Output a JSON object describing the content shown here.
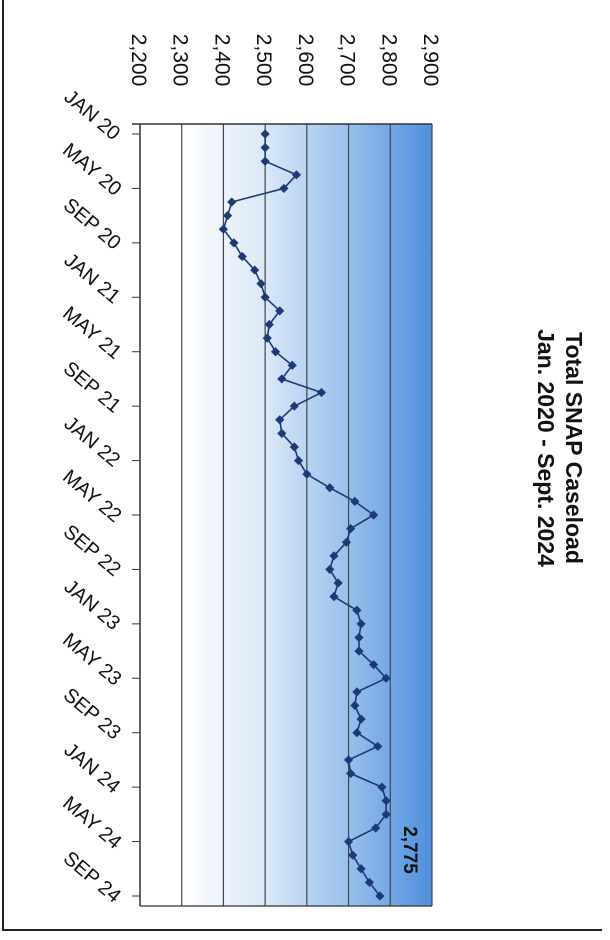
{
  "chart_data": {
    "type": "line",
    "title": "Total SNAP Caseload",
    "subtitle": "Jan. 2020 - Sept. 2024",
    "ylim": [
      2200,
      2900
    ],
    "y_ticks": [
      "2,200",
      "2,300",
      "2,400",
      "2,500",
      "2,600",
      "2,700",
      "2,800",
      "2,900"
    ],
    "x_tick_labels": [
      "JAN 20",
      "MAY 20",
      "SEP 20",
      "JAN 21",
      "MAY 21",
      "SEP 21",
      "JAN 22",
      "MAY 22",
      "SEP 22",
      "JAN 23",
      "MAY 23",
      "SEP 23",
      "JAN 24",
      "MAY 24",
      "SEP 24"
    ],
    "grid": true,
    "background": "blue gradient",
    "last_value_label": "2,775",
    "series": [
      {
        "color": "#1c3a78",
        "x": [
          "2020-01",
          "2020-02",
          "2020-03",
          "2020-04",
          "2020-05",
          "2020-06",
          "2020-07",
          "2020-08",
          "2020-09",
          "2020-10",
          "2020-11",
          "2020-12",
          "2021-01",
          "2021-02",
          "2021-03",
          "2021-04",
          "2021-05",
          "2021-06",
          "2021-07",
          "2021-08",
          "2021-09",
          "2021-10",
          "2021-11",
          "2021-12",
          "2022-01",
          "2022-02",
          "2022-03",
          "2022-04",
          "2022-05",
          "2022-06",
          "2022-07",
          "2022-08",
          "2022-09",
          "2022-10",
          "2022-11",
          "2022-12",
          "2023-01",
          "2023-02",
          "2023-03",
          "2023-04",
          "2023-05",
          "2023-06",
          "2023-07",
          "2023-08",
          "2023-09",
          "2023-10",
          "2023-11",
          "2023-12",
          "2024-01",
          "2024-02",
          "2024-03",
          "2024-04",
          "2024-05",
          "2024-06",
          "2024-07",
          "2024-08",
          "2024-09"
        ],
        "values": [
          2500,
          2500,
          2500,
          2575,
          2545,
          2420,
          2410,
          2400,
          2425,
          2445,
          2475,
          2490,
          2500,
          2535,
          2510,
          2505,
          2525,
          2565,
          2540,
          2635,
          2570,
          2535,
          2540,
          2570,
          2580,
          2600,
          2655,
          2715,
          2760,
          2705,
          2695,
          2665,
          2655,
          2675,
          2665,
          2720,
          2730,
          2725,
          2725,
          2760,
          2790,
          2720,
          2715,
          2730,
          2720,
          2770,
          2700,
          2705,
          2780,
          2790,
          2790,
          2765,
          2700,
          2710,
          2730,
          2750,
          2775
        ]
      }
    ]
  }
}
